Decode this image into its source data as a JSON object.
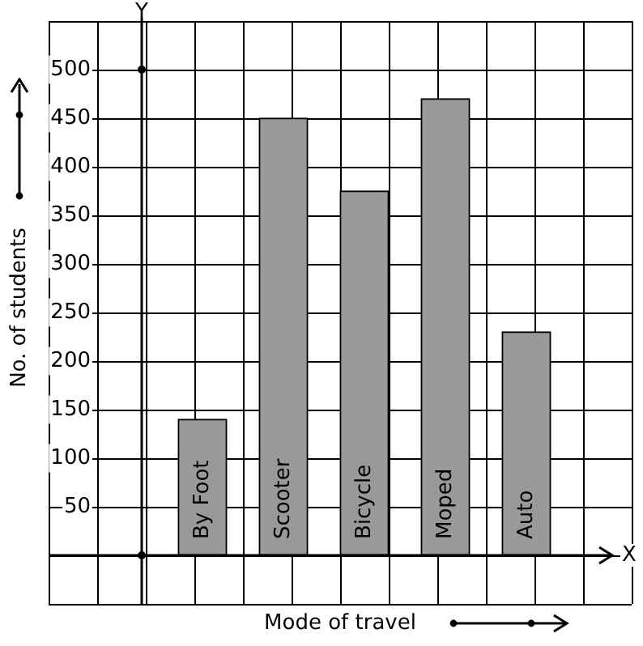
{
  "chart_data": {
    "type": "bar",
    "xlabel": "Mode of travel",
    "ylabel": "No. of students",
    "categories": [
      "By Foot",
      "Scooter",
      "Bicycle",
      "Moped",
      "Auto"
    ],
    "values": [
      140,
      450,
      375,
      470,
      230
    ],
    "color": "#999999",
    "ylim": [
      -50,
      550
    ],
    "yticks": [
      50,
      100,
      150,
      200,
      250,
      300,
      350,
      400,
      450,
      500
    ],
    "grid": true,
    "annotations": [
      "Y",
      "X"
    ]
  }
}
